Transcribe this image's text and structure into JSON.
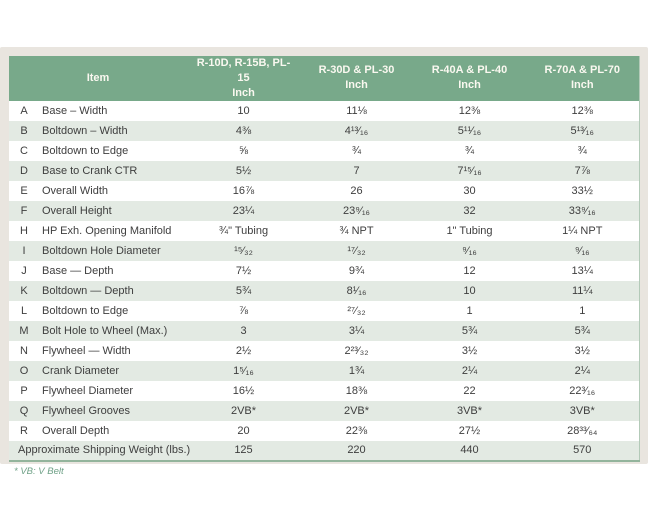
{
  "table": {
    "item_header": "Item",
    "model_columns": [
      {
        "model": "R-10D, R-15B, PL-15",
        "unit": "Inch"
      },
      {
        "model": "R-30D & PL-30",
        "unit": "Inch"
      },
      {
        "model": "R-40A & PL-40",
        "unit": "Inch"
      },
      {
        "model": "R-70A & PL-70",
        "unit": "Inch"
      }
    ],
    "rows": [
      {
        "letter": "A",
        "item": "Base – Width",
        "values": [
          "10",
          "11⅛",
          "12⅜",
          "12⅜"
        ]
      },
      {
        "letter": "B",
        "item": "Boltdown – Width",
        "values": [
          "4⅜",
          "4¹³⁄₁₆",
          "5¹¹⁄₁₆",
          "5¹³⁄₁₆"
        ]
      },
      {
        "letter": "C",
        "item": "Boltdown to Edge",
        "values": [
          "⅝",
          "¾",
          "¾",
          "¾"
        ]
      },
      {
        "letter": "D",
        "item": "Base to Crank CTR",
        "values": [
          "5½",
          "7",
          "7¹⁵⁄₁₆",
          "7⅞"
        ]
      },
      {
        "letter": "E",
        "item": "Overall Width",
        "values": [
          "16⅞",
          "26",
          "30",
          "33½"
        ]
      },
      {
        "letter": "F",
        "item": "Overall Height",
        "values": [
          "23¼",
          "23⁹⁄₁₆",
          "32",
          "33⁹⁄₁₆"
        ]
      },
      {
        "letter": "H",
        "item": "HP Exh. Opening Manifold",
        "values": [
          "¾\" Tubing",
          "¾ NPT",
          "1\" Tubing",
          "1¼ NPT"
        ]
      },
      {
        "letter": "I",
        "item": "Boltdown Hole Diameter",
        "values": [
          "¹⁵⁄₃₂",
          "¹⁷⁄₃₂",
          "⁹⁄₁₆",
          "⁹⁄₁₆"
        ]
      },
      {
        "letter": "J",
        "item": "Base — Depth",
        "values": [
          "7½",
          "9¾",
          "12",
          "13¼"
        ]
      },
      {
        "letter": "K",
        "item": "Boltdown — Depth",
        "values": [
          "5¾",
          "8¹⁄₁₆",
          "10",
          "11¼"
        ]
      },
      {
        "letter": "L",
        "item": "Boltdown to Edge",
        "values": [
          "⅞",
          "²⁷⁄₃₂",
          "1",
          "1"
        ]
      },
      {
        "letter": "M",
        "item": "Bolt Hole to Wheel (Max.)",
        "values": [
          "3",
          "3¼",
          "5¾",
          "5¾"
        ]
      },
      {
        "letter": "N",
        "item": "Flywheel — Width",
        "values": [
          "2½",
          "2²³⁄₃₂",
          "3½",
          "3½"
        ]
      },
      {
        "letter": "O",
        "item": "Crank Diameter",
        "values": [
          "1⁵⁄₁₆",
          "1¾",
          "2¼",
          "2¼"
        ]
      },
      {
        "letter": "P",
        "item": "Flywheel Diameter",
        "values": [
          "16½",
          "18⅜",
          "22",
          "22³⁄₁₆"
        ]
      },
      {
        "letter": "Q",
        "item": "Flywheel Grooves",
        "values": [
          "2VB*",
          "2VB*",
          "3VB*",
          "3VB*"
        ]
      },
      {
        "letter": "R",
        "item": "Overall Depth",
        "values": [
          "20",
          "22⅜",
          "27½",
          "28³³⁄₆₄"
        ]
      }
    ],
    "summary_row": {
      "item": "Approximate Shipping Weight (lbs.)",
      "values": [
        "125",
        "220",
        "440",
        "570"
      ]
    },
    "note": "* VB: V Belt"
  },
  "colors": {
    "header_bg": "#78a98a",
    "header_text": "#faf8f0",
    "row_alt_bg": "#e3eae3",
    "panel_bg": "#e9e5df",
    "body_text": "#3e3e3e",
    "note_text": "#6fa187",
    "table_border": "#93b49c"
  }
}
